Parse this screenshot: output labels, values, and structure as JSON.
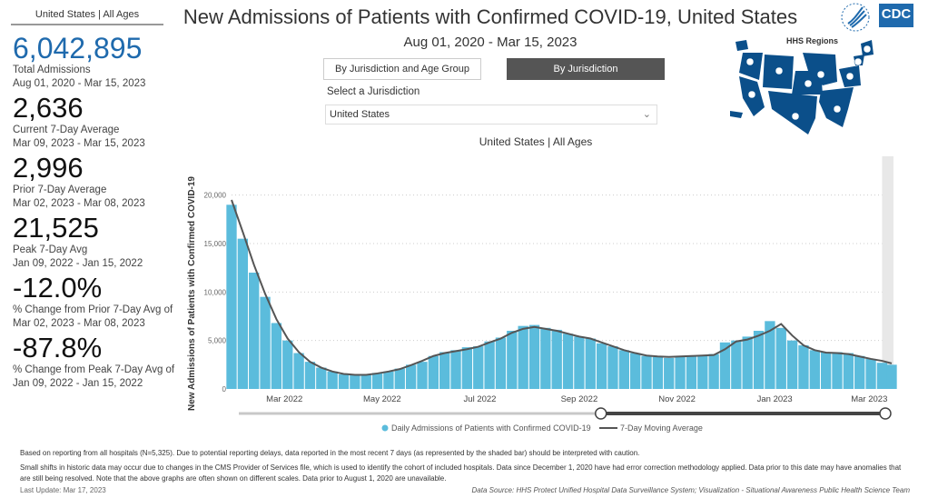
{
  "sidebar": {
    "header": "United States | All Ages",
    "stats": [
      {
        "value": "6,042,895",
        "label": "Total Admissions",
        "range": "Aug 01, 2020 - Mar 15, 2023"
      },
      {
        "value": "2,636",
        "label": "Current 7-Day Average",
        "range": "Mar 09, 2023 - Mar 15, 2023"
      },
      {
        "value": "2,996",
        "label": "Prior 7-Day Average",
        "range": "Mar 02, 2023 - Mar 08, 2023"
      },
      {
        "value": "21,525",
        "label": "Peak 7-Day Avg",
        "range": "Jan 09, 2022 - Jan 15, 2022"
      },
      {
        "value": "-12.0%",
        "label": "% Change from Prior 7-Day Avg of",
        "range": "Mar 02, 2023 - Mar 08, 2023"
      },
      {
        "value": "-87.8%",
        "label": "% Change from Peak 7-Day Avg of",
        "range": "Jan 09, 2022 - Jan 15, 2022"
      }
    ]
  },
  "header": {
    "title": "New Admissions of Patients with Confirmed COVID-19, United States",
    "date_range": "Aug 01, 2020 - Mar 15, 2023",
    "logo_text": "CDC",
    "map_title": "HHS Regions"
  },
  "controls": {
    "tabs": [
      {
        "label": "By Jurisdiction and Age Group",
        "active": false
      },
      {
        "label": "By Jurisdiction",
        "active": true
      }
    ],
    "select_label": "Select a Jurisdiction",
    "select_value": "United States"
  },
  "colors": {
    "accent": "#1f6aad",
    "bar": "#5bbcdc",
    "line": "#555555",
    "map": "#0b4f8a"
  },
  "chart_data": {
    "type": "bar",
    "title": "United States | All Ages",
    "ylabel": "New Admissions of Patients with Confirmed COVID-19",
    "ylim": [
      0,
      24000
    ],
    "yticks": [
      0,
      5000,
      10000,
      15000,
      20000
    ],
    "ytick_labels": [
      "0",
      "5,000",
      "10,000",
      "15,000",
      "20,000"
    ],
    "xtick_labels": [
      "Mar 2022",
      "May 2022",
      "Jul 2022",
      "Sep 2022",
      "Nov 2022",
      "Jan 2023",
      "Mar 2023"
    ],
    "xtick_dates": [
      "2022-03-01",
      "2022-05-01",
      "2022-07-01",
      "2022-09-01",
      "2022-11-01",
      "2023-01-01",
      "2023-03-01"
    ],
    "xrange": [
      "2022-01-27",
      "2023-03-15"
    ],
    "shaded_from": "2023-03-09",
    "dates": [
      "2022-01-27",
      "2022-02-03",
      "2022-02-10",
      "2022-02-17",
      "2022-02-24",
      "2022-03-03",
      "2022-03-10",
      "2022-03-17",
      "2022-03-24",
      "2022-03-31",
      "2022-04-07",
      "2022-04-14",
      "2022-04-21",
      "2022-04-28",
      "2022-05-05",
      "2022-05-12",
      "2022-05-19",
      "2022-05-26",
      "2022-06-02",
      "2022-06-09",
      "2022-06-16",
      "2022-06-23",
      "2022-06-30",
      "2022-07-07",
      "2022-07-14",
      "2022-07-21",
      "2022-07-28",
      "2022-08-04",
      "2022-08-11",
      "2022-08-18",
      "2022-08-25",
      "2022-09-01",
      "2022-09-08",
      "2022-09-15",
      "2022-09-22",
      "2022-09-29",
      "2022-10-06",
      "2022-10-13",
      "2022-10-20",
      "2022-10-27",
      "2022-11-03",
      "2022-11-10",
      "2022-11-17",
      "2022-11-24",
      "2022-12-01",
      "2022-12-08",
      "2022-12-15",
      "2022-12-22",
      "2022-12-29",
      "2023-01-05",
      "2023-01-12",
      "2023-01-19",
      "2023-01-26",
      "2023-02-02",
      "2023-02-09",
      "2023-02-16",
      "2023-02-23",
      "2023-03-02",
      "2023-03-09",
      "2023-03-15"
    ],
    "series": [
      {
        "name": "Daily Admissions of Patients with Confirmed COVID-19",
        "values": [
          19000,
          15500,
          12000,
          9500,
          6800,
          5000,
          3700,
          2800,
          2200,
          1800,
          1500,
          1450,
          1500,
          1650,
          1800,
          2100,
          2500,
          2800,
          3400,
          3800,
          4000,
          4300,
          4400,
          4900,
          5300,
          6000,
          6500,
          6600,
          6300,
          6100,
          5700,
          5400,
          5200,
          4700,
          4400,
          4000,
          3700,
          3400,
          3300,
          3200,
          3300,
          3450,
          3500,
          3600,
          4800,
          5000,
          5400,
          6000,
          7000,
          6300,
          5000,
          4500,
          4000,
          3800,
          3800,
          3700,
          3400,
          3100,
          2700,
          2500
        ]
      },
      {
        "name": "7-Day Moving Average",
        "values": [
          19500,
          16200,
          12800,
          9800,
          7200,
          5200,
          3800,
          2800,
          2200,
          1800,
          1550,
          1450,
          1450,
          1600,
          1800,
          2050,
          2450,
          2900,
          3400,
          3700,
          3900,
          4100,
          4350,
          4800,
          5200,
          5800,
          6200,
          6400,
          6200,
          6000,
          5700,
          5400,
          5200,
          4800,
          4400,
          4000,
          3700,
          3450,
          3350,
          3300,
          3350,
          3400,
          3450,
          3500,
          4100,
          4900,
          5100,
          5500,
          6000,
          6700,
          5500,
          4500,
          4000,
          3750,
          3700,
          3600,
          3350,
          3100,
          2900,
          2636
        ]
      }
    ]
  },
  "slider": {
    "start_fraction": 0.56,
    "end_fraction": 1.0
  },
  "footer": {
    "note1": "Based on reporting from all hospitals (N=5,325). Due to potential reporting delays, data reported in the most recent 7 days (as represented by the shaded bar) should be interpreted with caution.",
    "note2": "Small shifts in historic data may occur due to changes in the CMS Provider of Services file, which is used to identify the cohort of included hospitals. Data since December 1, 2020 have had error correction methodology applied. Data prior to this date may have anomalies that are still being resolved. Note that the above graphs are often shown on different scales. Data prior to August 1, 2020 are unavailable.",
    "last_update": "Last Update: Mar 17, 2023",
    "source": "Data Source: HHS Protect Unified Hospital Data Surveillance System; Visualization - Situational Awareness Public Health Science Team"
  }
}
